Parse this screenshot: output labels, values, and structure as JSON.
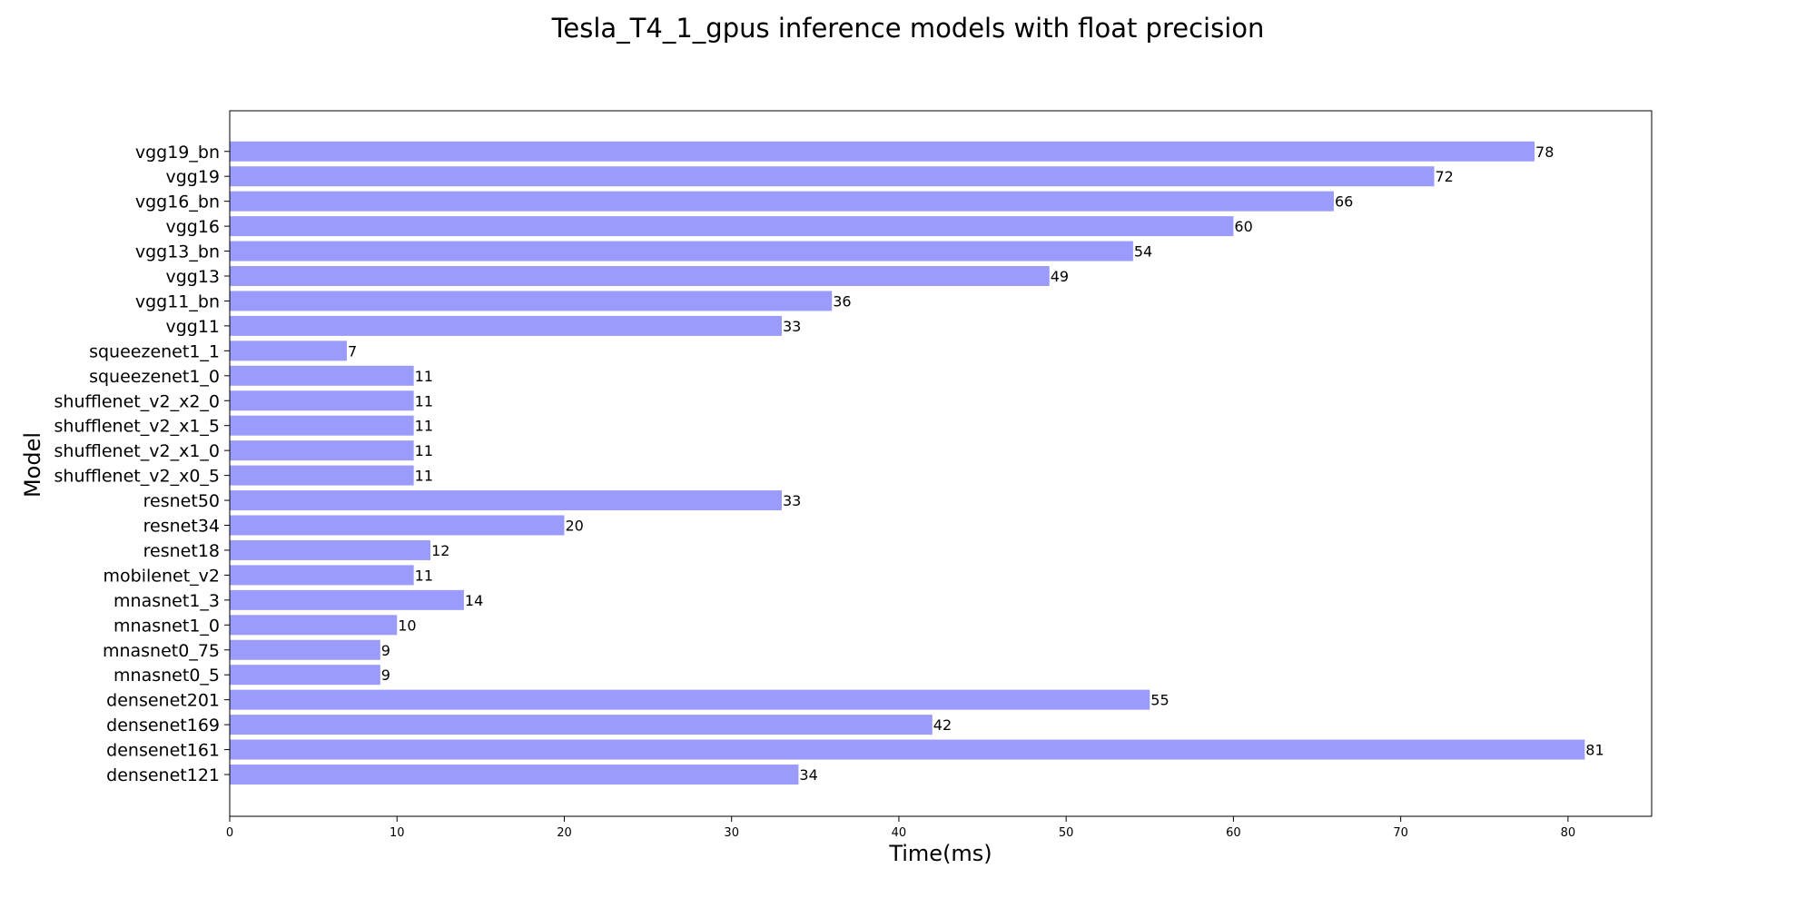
{
  "chart_data": {
    "type": "bar",
    "orientation": "horizontal",
    "title": "Tesla_T4_1_gpus inference models with float precision",
    "xlabel": "Time(ms)",
    "ylabel": "Model",
    "xlim": [
      0,
      85
    ],
    "xticks": [
      0,
      10,
      20,
      30,
      40,
      50,
      60,
      70,
      80
    ],
    "grid": false,
    "bar_color": "#9b9bfb",
    "categories": [
      "densenet121",
      "densenet161",
      "densenet169",
      "densenet201",
      "mnasnet0_5",
      "mnasnet0_75",
      "mnasnet1_0",
      "mnasnet1_3",
      "mobilenet_v2",
      "resnet18",
      "resnet34",
      "resnet50",
      "shufflenet_v2_x0_5",
      "shufflenet_v2_x1_0",
      "shufflenet_v2_x1_5",
      "shufflenet_v2_x2_0",
      "squeezenet1_0",
      "squeezenet1_1",
      "vgg11",
      "vgg11_bn",
      "vgg13",
      "vgg13_bn",
      "vgg16",
      "vgg16_bn",
      "vgg19",
      "vgg19_bn"
    ],
    "values": [
      34,
      81,
      42,
      55,
      9,
      9,
      10,
      14,
      11,
      12,
      20,
      33,
      11,
      11,
      11,
      11,
      11,
      7,
      33,
      36,
      49,
      54,
      60,
      66,
      72,
      78
    ]
  }
}
